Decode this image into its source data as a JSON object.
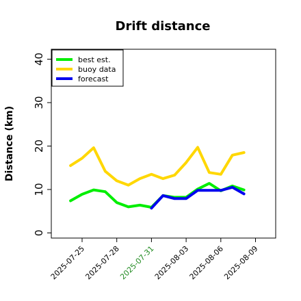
{
  "chart_data": {
    "type": "line",
    "title": "Drift distance",
    "xlabel": "",
    "ylabel": "Distance (km)",
    "ylim": [
      -1,
      42
    ],
    "yticks": [
      0,
      10,
      20,
      30,
      40
    ],
    "x_tick_labels": [
      {
        "label": "2025-07-25",
        "color": "#000000"
      },
      {
        "label": "2025-07-28",
        "color": "#000000"
      },
      {
        "label": "2025-07-31",
        "color": "#228b22"
      },
      {
        "label": "2025-08-03",
        "color": "#000000"
      },
      {
        "label": "2025-08-06",
        "color": "#000000"
      },
      {
        "label": "2025-08-09",
        "color": "#000000"
      }
    ],
    "x": [
      "2025-07-24",
      "2025-07-25",
      "2025-07-26",
      "2025-07-27",
      "2025-07-28",
      "2025-07-29",
      "2025-07-30",
      "2025-07-31",
      "2025-08-01",
      "2025-08-02",
      "2025-08-03",
      "2025-08-04",
      "2025-08-05",
      "2025-08-06",
      "2025-08-07",
      "2025-08-08"
    ],
    "series": [
      {
        "name": "best est.",
        "color": "#00ee00",
        "values": [
          7.4,
          8.9,
          9.9,
          9.5,
          7.0,
          6.0,
          6.4,
          5.9,
          8.6,
          8.2,
          8.2,
          10.1,
          11.4,
          9.7,
          10.8,
          9.9
        ]
      },
      {
        "name": "buoy data",
        "color": "#ffd700",
        "values": [
          15.5,
          17.2,
          19.6,
          14.2,
          12.0,
          11.0,
          12.5,
          13.5,
          12.5,
          13.3,
          16.2,
          19.7,
          13.9,
          13.5,
          17.9,
          18.5
        ]
      },
      {
        "name": "forecast",
        "color": "#0000ee",
        "values": [
          null,
          null,
          null,
          null,
          null,
          null,
          null,
          5.7,
          8.6,
          7.9,
          7.9,
          9.8,
          9.8,
          9.8,
          10.5,
          9.0
        ]
      }
    ],
    "grid": false,
    "legend_position": "top-left"
  }
}
